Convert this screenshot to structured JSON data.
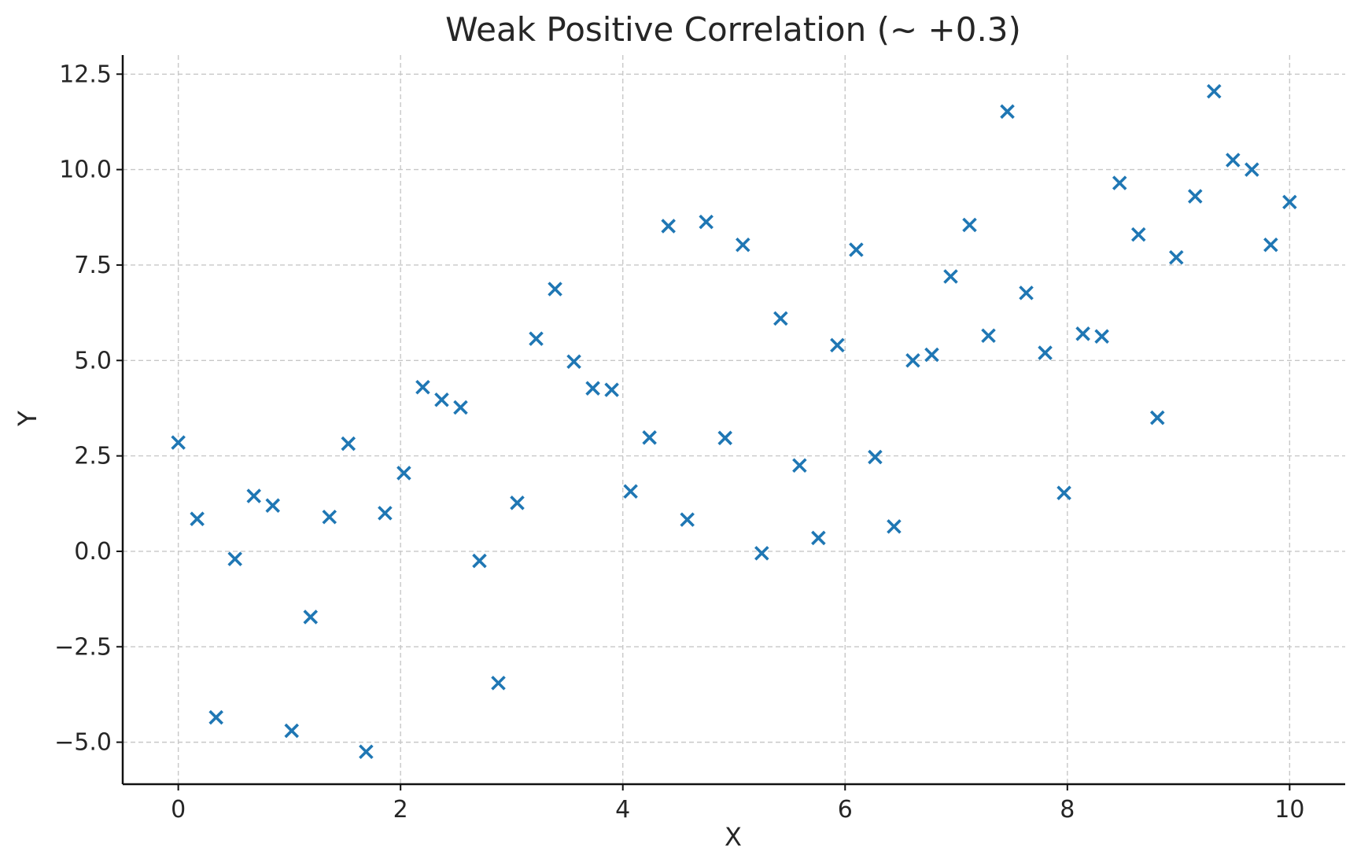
{
  "chart_data": {
    "type": "scatter",
    "title": "Weak Positive Correlation (~ +0.3)",
    "xlabel": "X",
    "ylabel": "Y",
    "xlim": [
      -0.5,
      10.5
    ],
    "ylim": [
      -6.1,
      13.0
    ],
    "xticks": [
      0,
      2,
      4,
      6,
      8,
      10
    ],
    "xtick_labels": [
      "0",
      "2",
      "4",
      "6",
      "8",
      "10"
    ],
    "yticks": [
      -5.0,
      -2.5,
      0.0,
      2.5,
      5.0,
      7.5,
      10.0,
      12.5
    ],
    "ytick_labels": [
      "−5.0",
      "−2.5",
      "0.0",
      "2.5",
      "5.0",
      "7.5",
      "10.0",
      "12.5"
    ],
    "grid": true,
    "marker": "x",
    "color": "#1f77b4",
    "series": [
      {
        "points": [
          [
            0.0,
            2.85
          ],
          [
            0.17,
            0.85
          ],
          [
            0.34,
            -4.35
          ],
          [
            0.51,
            -0.2
          ],
          [
            0.68,
            1.45
          ],
          [
            0.85,
            1.2
          ],
          [
            1.02,
            -4.7
          ],
          [
            1.19,
            -1.72
          ],
          [
            1.36,
            0.9
          ],
          [
            1.53,
            2.82
          ],
          [
            1.69,
            -5.25
          ],
          [
            1.86,
            1.0
          ],
          [
            2.03,
            2.05
          ],
          [
            2.2,
            4.3
          ],
          [
            2.37,
            3.97
          ],
          [
            2.54,
            3.77
          ],
          [
            2.71,
            -0.25
          ],
          [
            2.88,
            -3.45
          ],
          [
            3.05,
            1.27
          ],
          [
            3.22,
            5.57
          ],
          [
            3.39,
            6.87
          ],
          [
            3.56,
            4.97
          ],
          [
            3.73,
            4.27
          ],
          [
            3.9,
            4.23
          ],
          [
            4.07,
            1.57
          ],
          [
            4.24,
            2.98
          ],
          [
            4.41,
            8.52
          ],
          [
            4.58,
            0.83
          ],
          [
            4.75,
            8.63
          ],
          [
            4.92,
            2.97
          ],
          [
            5.08,
            8.03
          ],
          [
            5.25,
            -0.05
          ],
          [
            5.42,
            6.1
          ],
          [
            5.59,
            2.25
          ],
          [
            5.76,
            0.35
          ],
          [
            5.93,
            5.4
          ],
          [
            6.1,
            7.9
          ],
          [
            6.27,
            2.47
          ],
          [
            6.44,
            0.65
          ],
          [
            6.61,
            5.0
          ],
          [
            6.78,
            5.15
          ],
          [
            6.95,
            7.2
          ],
          [
            7.12,
            8.55
          ],
          [
            7.29,
            5.65
          ],
          [
            7.46,
            11.52
          ],
          [
            7.63,
            6.77
          ],
          [
            7.8,
            5.2
          ],
          [
            7.97,
            1.53
          ],
          [
            8.14,
            5.7
          ],
          [
            8.31,
            5.63
          ],
          [
            8.47,
            9.65
          ],
          [
            8.64,
            8.3
          ],
          [
            8.81,
            3.5
          ],
          [
            8.98,
            7.7
          ],
          [
            9.15,
            9.3
          ],
          [
            9.32,
            12.05
          ],
          [
            9.49,
            10.25
          ],
          [
            9.66,
            10.0
          ],
          [
            9.83,
            8.03
          ],
          [
            10.0,
            9.15
          ]
        ]
      }
    ]
  }
}
